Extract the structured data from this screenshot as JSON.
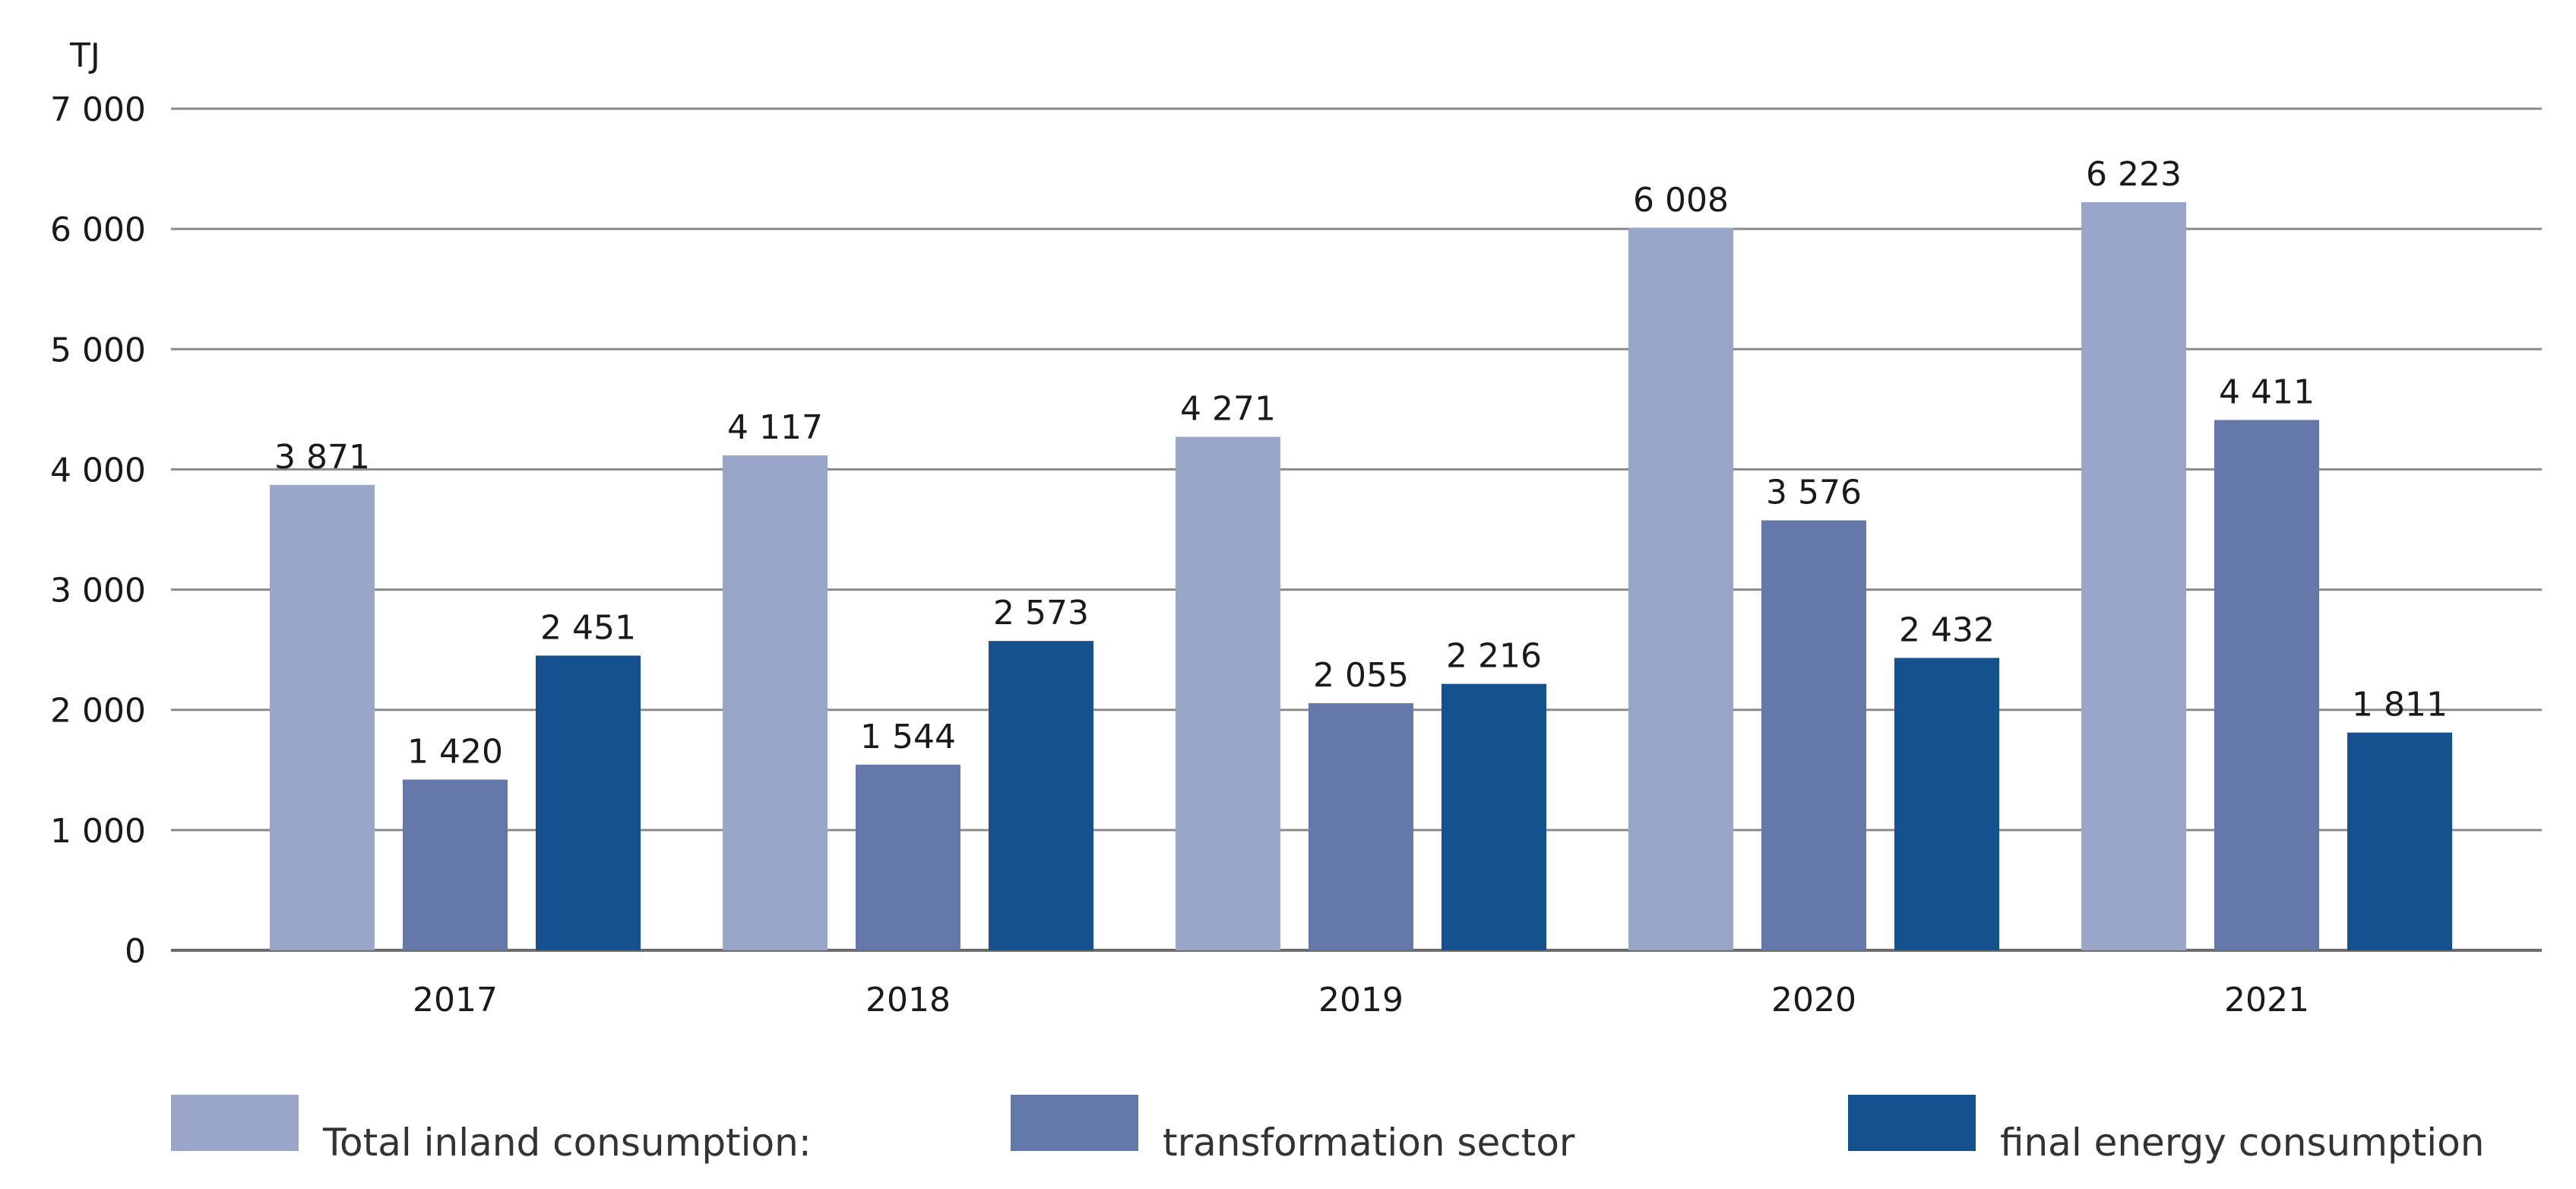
{
  "chart_data": {
    "type": "bar",
    "unit": "TJ",
    "categories": [
      "2017",
      "2018",
      "2019",
      "2020",
      "2021"
    ],
    "series": [
      {
        "name": "Total inland consumption:",
        "color": "#9aa6c9",
        "values": [
          3871,
          4117,
          4271,
          6008,
          6223
        ],
        "labels": [
          "3 871",
          "4 117",
          "4 271",
          "6 008",
          "6 223"
        ]
      },
      {
        "name": "transformation sector",
        "color": "#6479aa",
        "values": [
          1420,
          1544,
          2055,
          3576,
          4411
        ],
        "labels": [
          "1 420",
          "1 544",
          "2 055",
          "3 576",
          "4 411"
        ]
      },
      {
        "name": "final energy consumption",
        "color": "#15518e",
        "values": [
          2451,
          2573,
          2216,
          2432,
          1811
        ],
        "labels": [
          "2 451",
          "2 573",
          "2 216",
          "2 432",
          "1 811"
        ]
      }
    ],
    "ylim": [
      0,
      7000
    ],
    "yticks": [
      0,
      1000,
      2000,
      3000,
      4000,
      5000,
      6000,
      7000
    ],
    "ytick_labels": [
      "0",
      "1 000",
      "2 000",
      "3 000",
      "4 000",
      "5 000",
      "6 000",
      "7 000"
    ],
    "grid": true,
    "legend": "bottom"
  }
}
